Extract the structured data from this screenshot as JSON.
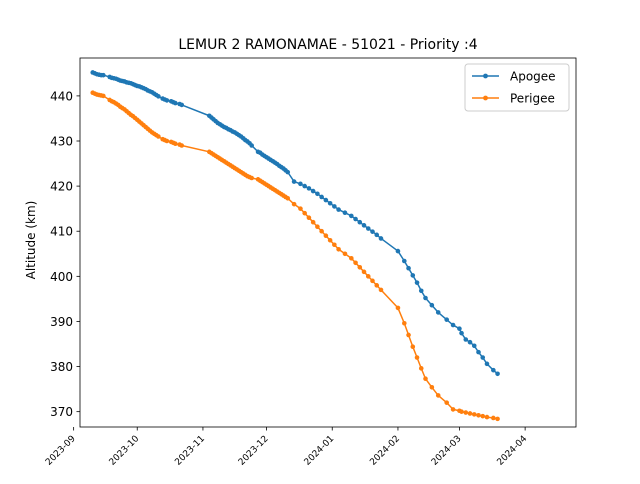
{
  "chart_data": {
    "type": "line",
    "title": "LEMUR 2 RAMONAMAE - 51021 - Priority :4",
    "xlabel": "",
    "ylabel": "Altitude (km)",
    "ylim": [
      366.6,
      448.4
    ],
    "xlim": [
      "2023-09-04",
      "2024-04-25"
    ],
    "yticks": [
      370,
      380,
      390,
      400,
      410,
      420,
      430,
      440
    ],
    "xticks": [
      "2023-09",
      "2023-10",
      "2023-11",
      "2023-12",
      "2024-01",
      "2024-02",
      "2024-03",
      "2024-04"
    ],
    "legend": {
      "position": "top-right",
      "entries": [
        "Apogee",
        "Perigee"
      ]
    },
    "grid": false,
    "series": [
      {
        "name": "Apogee",
        "color": "#1f77b4",
        "x": [
          "2023-09-10",
          "2023-09-11",
          "2023-09-12",
          "2023-09-13",
          "2023-09-14",
          "2023-09-15",
          "2023-09-18",
          "2023-09-19",
          "2023-09-20",
          "2023-09-21",
          "2023-09-22",
          "2023-09-23",
          "2023-09-24",
          "2023-09-25",
          "2023-09-26",
          "2023-09-27",
          "2023-09-28",
          "2023-09-29",
          "2023-09-30",
          "2023-10-01",
          "2023-10-02",
          "2023-10-03",
          "2023-10-04",
          "2023-10-05",
          "2023-10-06",
          "2023-10-07",
          "2023-10-08",
          "2023-10-09",
          "2023-10-10",
          "2023-10-11",
          "2023-10-13",
          "2023-10-14",
          "2023-10-15",
          "2023-10-17",
          "2023-10-18",
          "2023-10-19",
          "2023-10-21",
          "2023-10-22",
          "2023-11-04",
          "2023-11-05",
          "2023-11-06",
          "2023-11-07",
          "2023-11-08",
          "2023-11-09",
          "2023-11-10",
          "2023-11-11",
          "2023-11-12",
          "2023-11-13",
          "2023-11-14",
          "2023-11-15",
          "2023-11-16",
          "2023-11-17",
          "2023-11-18",
          "2023-11-19",
          "2023-11-20",
          "2023-11-21",
          "2023-11-22",
          "2023-11-23",
          "2023-11-24",
          "2023-11-27",
          "2023-11-28",
          "2023-11-29",
          "2023-11-30",
          "2023-12-01",
          "2023-12-02",
          "2023-12-03",
          "2023-12-04",
          "2023-12-05",
          "2023-12-06",
          "2023-12-07",
          "2023-12-08",
          "2023-12-09",
          "2023-12-10",
          "2023-12-11",
          "2023-12-14",
          "2023-12-17",
          "2023-12-19",
          "2023-12-21",
          "2023-12-23",
          "2023-12-25",
          "2023-12-27",
          "2023-12-29",
          "2023-12-31",
          "2024-01-02",
          "2024-01-04",
          "2024-01-07",
          "2024-01-10",
          "2024-01-12",
          "2024-01-14",
          "2024-01-16",
          "2024-01-18",
          "2024-01-20",
          "2024-01-22",
          "2024-01-24",
          "2024-02-01",
          "2024-02-04",
          "2024-02-06",
          "2024-02-08",
          "2024-02-10",
          "2024-02-12",
          "2024-02-14",
          "2024-02-17",
          "2024-02-20",
          "2024-02-24",
          "2024-02-27",
          "2024-03-01",
          "2024-03-02",
          "2024-03-04",
          "2024-03-06",
          "2024-03-08",
          "2024-03-10",
          "2024-03-12",
          "2024-03-14",
          "2024-03-17",
          "2024-03-19"
        ],
        "values": [
          445.2,
          445.0,
          444.8,
          444.7,
          444.6,
          444.6,
          444.2,
          444.0,
          443.9,
          443.8,
          443.6,
          443.4,
          443.3,
          443.2,
          443.0,
          442.9,
          442.8,
          442.6,
          442.4,
          442.2,
          442.1,
          441.9,
          441.7,
          441.5,
          441.2,
          441.0,
          440.8,
          440.5,
          440.2,
          439.9,
          439.4,
          439.2,
          439.0,
          438.8,
          438.6,
          438.4,
          438.2,
          438.0,
          435.6,
          435.2,
          434.8,
          434.4,
          434.0,
          433.7,
          433.4,
          433.1,
          432.9,
          432.6,
          432.4,
          432.1,
          431.9,
          431.6,
          431.3,
          431.0,
          430.6,
          430.2,
          429.9,
          429.5,
          429.0,
          427.6,
          427.4,
          427.0,
          426.7,
          426.4,
          426.1,
          425.8,
          425.5,
          425.2,
          424.9,
          424.5,
          424.2,
          423.9,
          423.5,
          423.1,
          421.0,
          420.5,
          420.0,
          419.5,
          418.9,
          418.3,
          417.6,
          416.9,
          416.2,
          415.5,
          414.8,
          414.1,
          413.4,
          412.7,
          412.0,
          411.3,
          410.6,
          409.9,
          409.2,
          408.4,
          405.6,
          403.4,
          401.8,
          400.2,
          398.6,
          396.8,
          395.2,
          393.6,
          392.0,
          390.4,
          389.2,
          388.4,
          387.4,
          386.0,
          385.4,
          384.6,
          383.2,
          382.0,
          380.6,
          379.2,
          378.4
        ]
      },
      {
        "name": "Perigee",
        "color": "#ff7f0e",
        "x": [
          "2023-09-10",
          "2023-09-11",
          "2023-09-12",
          "2023-09-13",
          "2023-09-14",
          "2023-09-15",
          "2023-09-18",
          "2023-09-19",
          "2023-09-20",
          "2023-09-21",
          "2023-09-22",
          "2023-09-23",
          "2023-09-24",
          "2023-09-25",
          "2023-09-26",
          "2023-09-27",
          "2023-09-28",
          "2023-09-29",
          "2023-09-30",
          "2023-10-01",
          "2023-10-02",
          "2023-10-03",
          "2023-10-04",
          "2023-10-05",
          "2023-10-06",
          "2023-10-07",
          "2023-10-08",
          "2023-10-09",
          "2023-10-10",
          "2023-10-11",
          "2023-10-13",
          "2023-10-14",
          "2023-10-15",
          "2023-10-17",
          "2023-10-18",
          "2023-10-19",
          "2023-10-21",
          "2023-10-22",
          "2023-11-04",
          "2023-11-05",
          "2023-11-06",
          "2023-11-07",
          "2023-11-08",
          "2023-11-09",
          "2023-11-10",
          "2023-11-11",
          "2023-11-12",
          "2023-11-13",
          "2023-11-14",
          "2023-11-15",
          "2023-11-16",
          "2023-11-17",
          "2023-11-18",
          "2023-11-19",
          "2023-11-20",
          "2023-11-21",
          "2023-11-22",
          "2023-11-23",
          "2023-11-24",
          "2023-11-27",
          "2023-11-28",
          "2023-11-29",
          "2023-11-30",
          "2023-12-01",
          "2023-12-02",
          "2023-12-03",
          "2023-12-04",
          "2023-12-05",
          "2023-12-06",
          "2023-12-07",
          "2023-12-08",
          "2023-12-09",
          "2023-12-10",
          "2023-12-11",
          "2023-12-14",
          "2023-12-17",
          "2023-12-19",
          "2023-12-21",
          "2023-12-23",
          "2023-12-25",
          "2023-12-27",
          "2023-12-29",
          "2023-12-31",
          "2024-01-02",
          "2024-01-04",
          "2024-01-07",
          "2024-01-10",
          "2024-01-12",
          "2024-01-14",
          "2024-01-16",
          "2024-01-18",
          "2024-01-20",
          "2024-01-22",
          "2024-01-24",
          "2024-02-01",
          "2024-02-04",
          "2024-02-06",
          "2024-02-08",
          "2024-02-10",
          "2024-02-12",
          "2024-02-14",
          "2024-02-17",
          "2024-02-20",
          "2024-02-24",
          "2024-02-27",
          "2024-03-01",
          "2024-03-02",
          "2024-03-04",
          "2024-03-06",
          "2024-03-08",
          "2024-03-10",
          "2024-03-12",
          "2024-03-14",
          "2024-03-17",
          "2024-03-19"
        ],
        "values": [
          440.7,
          440.5,
          440.3,
          440.2,
          440.1,
          440.0,
          439.1,
          438.8,
          438.6,
          438.3,
          438.0,
          437.6,
          437.3,
          437.0,
          436.6,
          436.2,
          435.8,
          435.5,
          435.1,
          434.7,
          434.3,
          433.9,
          433.5,
          433.1,
          432.7,
          432.3,
          431.9,
          431.6,
          431.3,
          431.0,
          430.4,
          430.2,
          430.0,
          429.8,
          429.6,
          429.4,
          429.2,
          429.0,
          427.6,
          427.3,
          427.0,
          426.7,
          426.4,
          426.1,
          425.8,
          425.5,
          425.2,
          424.9,
          424.6,
          424.3,
          424.0,
          423.7,
          423.4,
          423.1,
          422.8,
          422.5,
          422.2,
          422.0,
          421.8,
          421.5,
          421.2,
          420.9,
          420.6,
          420.3,
          420.0,
          419.7,
          419.4,
          419.1,
          418.8,
          418.5,
          418.2,
          417.9,
          417.6,
          417.3,
          416.0,
          415.0,
          414.0,
          413.0,
          412.0,
          411.0,
          410.0,
          409.0,
          408.0,
          407.0,
          406.0,
          405.0,
          404.0,
          403.0,
          402.0,
          401.0,
          400.0,
          399.0,
          398.0,
          397.0,
          393.0,
          389.6,
          387.0,
          384.4,
          382.0,
          379.6,
          377.3,
          375.4,
          373.6,
          372.0,
          370.5,
          370.2,
          370.0,
          369.8,
          369.6,
          369.4,
          369.2,
          369.0,
          368.8,
          368.6,
          368.4
        ]
      }
    ]
  }
}
